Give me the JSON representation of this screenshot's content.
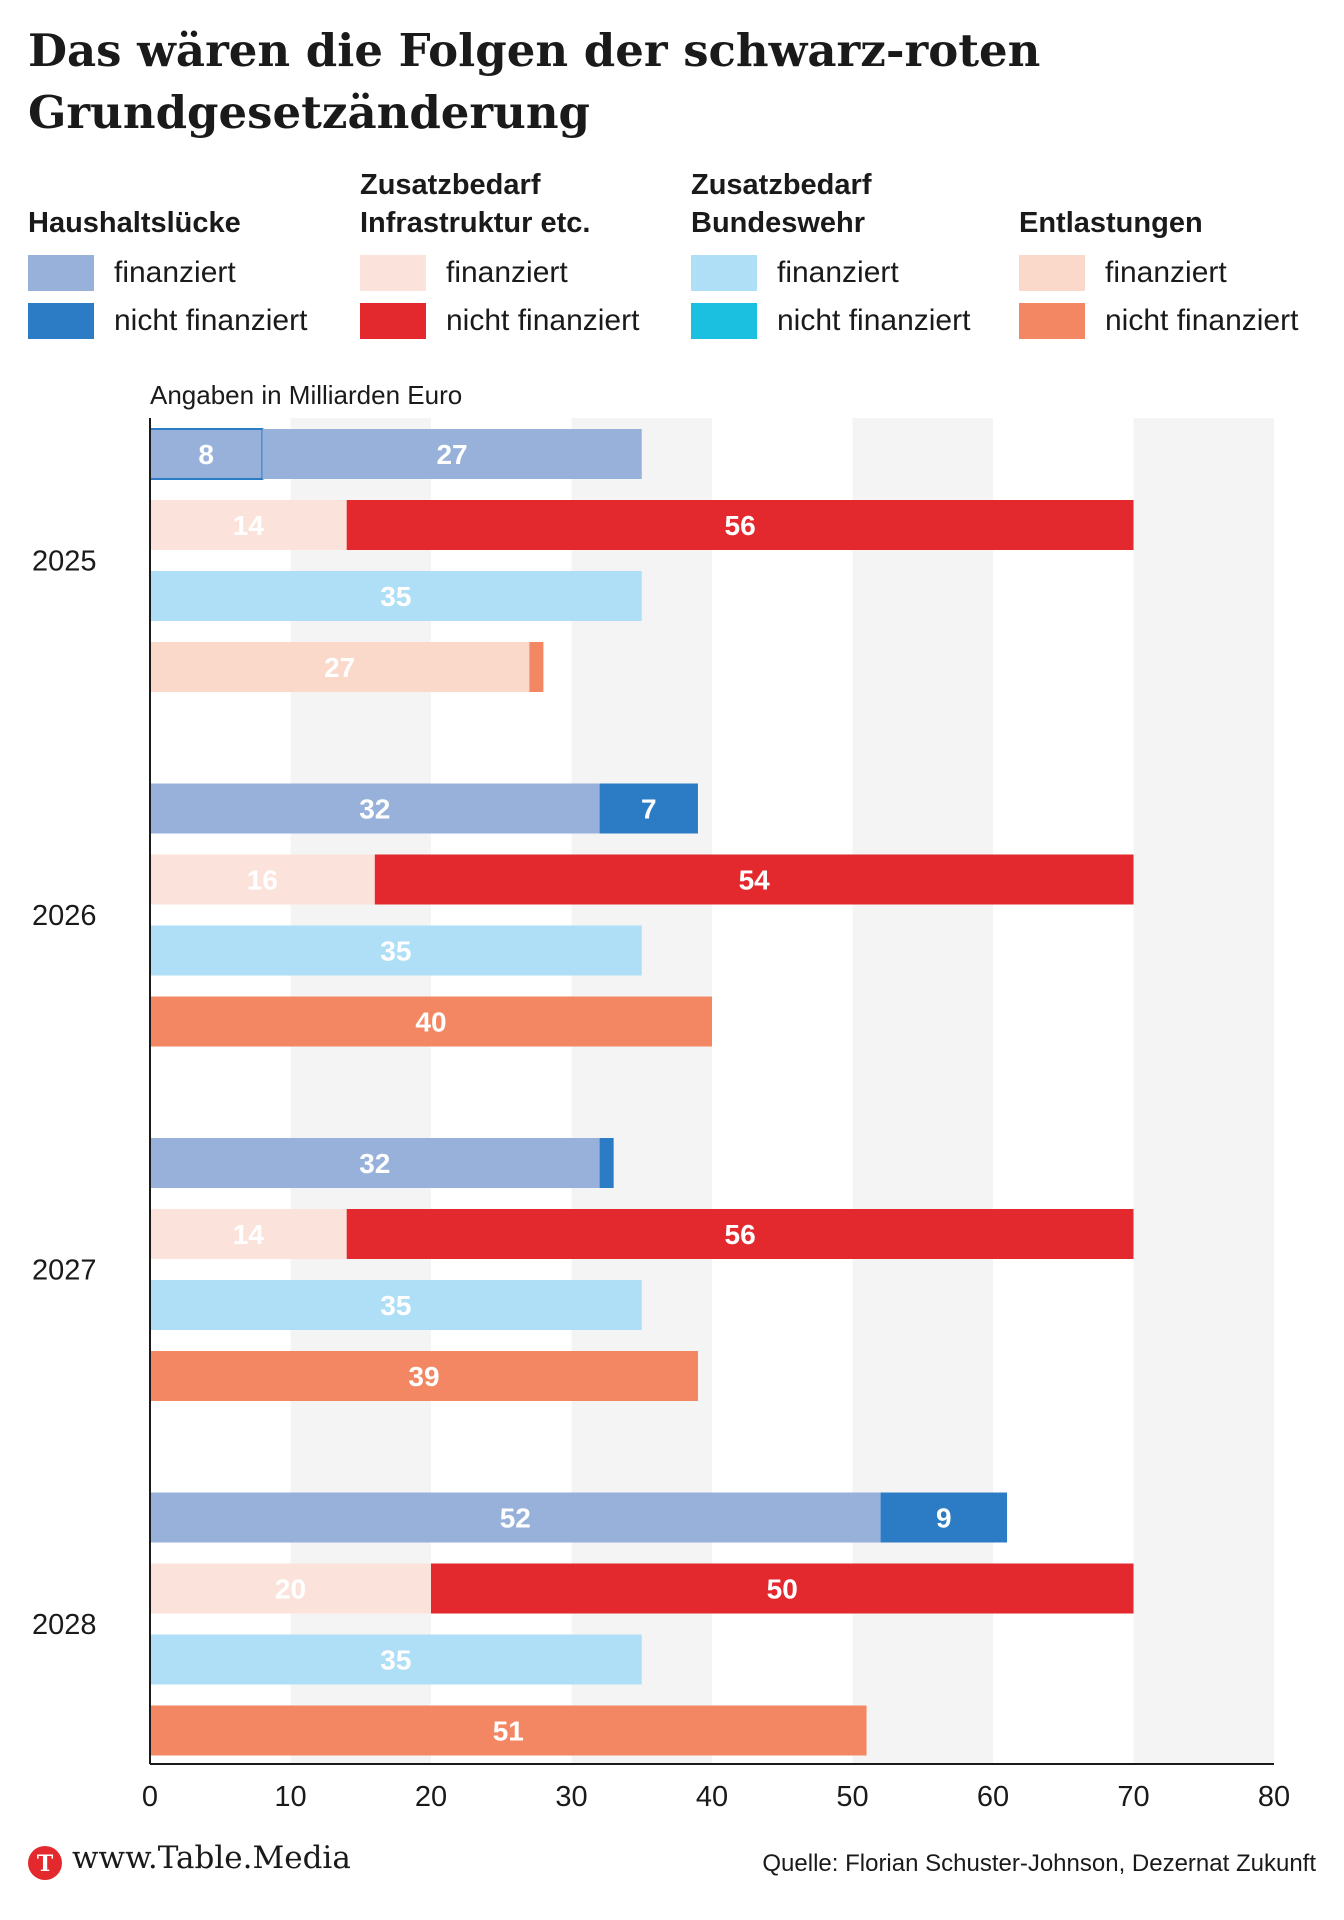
{
  "title": "Das wären die Folgen der schwarz-roten Grundgesetzänderung",
  "legend": [
    {
      "heading": "Haushaltslücke",
      "items": [
        {
          "label": "finanziert",
          "color": "#98b1db"
        },
        {
          "label": "nicht finanziert",
          "color": "#2b7cc4"
        }
      ]
    },
    {
      "heading": "Zusatzbedarf Infrastruktur etc.",
      "items": [
        {
          "label": "finanziert",
          "color": "#fbe3dc"
        },
        {
          "label": "nicht finanziert",
          "color": "#e3292d"
        }
      ]
    },
    {
      "heading": "Zusatzbedarf Bundeswehr",
      "items": [
        {
          "label": "finanziert",
          "color": "#aedff7"
        },
        {
          "label": "nicht finanziert",
          "color": "#1bbfe0"
        }
      ]
    },
    {
      "heading": "Entlastungen",
      "items": [
        {
          "label": "finanziert",
          "color": "#fad9cb"
        },
        {
          "label": "nicht finanziert",
          "color": "#f38763"
        }
      ]
    }
  ],
  "unit_note": "Angaben in Milliarden Euro",
  "chart_data": {
    "type": "bar",
    "orientation": "horizontal",
    "stacked": true,
    "categories": [
      "2025",
      "2026",
      "2027",
      "2028"
    ],
    "groups": [
      {
        "name": "Haushaltslücke",
        "finanziert": [
          27,
          32,
          32,
          52
        ],
        "nicht_finanziert": [
          8,
          7,
          1,
          9
        ],
        "first_segment": [
          "nicht_finanziert",
          "finanziert",
          "finanziert",
          "finanziert"
        ],
        "show_labels": {
          "finanziert": [
            true,
            true,
            true,
            true
          ],
          "nicht_finanziert": [
            true,
            true,
            false,
            true
          ]
        }
      },
      {
        "name": "Zusatzbedarf Infrastruktur etc.",
        "finanziert": [
          14,
          16,
          14,
          20
        ],
        "nicht_finanziert": [
          56,
          54,
          56,
          50
        ],
        "first_segment": [
          "finanziert",
          "finanziert",
          "finanziert",
          "finanziert"
        ],
        "show_labels": {
          "finanziert": [
            true,
            true,
            true,
            true
          ],
          "nicht_finanziert": [
            true,
            true,
            true,
            true
          ]
        }
      },
      {
        "name": "Zusatzbedarf Bundeswehr",
        "finanziert": [
          35,
          35,
          35,
          35
        ],
        "nicht_finanziert": [
          0,
          0,
          0,
          0
        ],
        "first_segment": [
          "finanziert",
          "finanziert",
          "finanziert",
          "finanziert"
        ],
        "show_labels": {
          "finanziert": [
            true,
            true,
            true,
            true
          ],
          "nicht_finanziert": [
            false,
            false,
            false,
            false
          ]
        }
      },
      {
        "name": "Entlastungen",
        "finanziert": [
          27,
          0,
          0,
          0
        ],
        "nicht_finanziert": [
          1,
          40,
          39,
          51
        ],
        "first_segment": [
          "finanziert",
          "finanziert",
          "finanziert",
          "finanziert"
        ],
        "show_labels": {
          "finanziert": [
            true,
            false,
            false,
            false
          ],
          "nicht_finanziert": [
            false,
            true,
            true,
            true
          ]
        }
      }
    ],
    "xlim": [
      0,
      80
    ],
    "xticks": [
      0,
      10,
      20,
      30,
      40,
      50,
      60,
      70,
      80
    ],
    "grid": "alternating bands",
    "legend_position": "top"
  },
  "footer": {
    "site": "www.Table.Media",
    "logo_letter": "T",
    "source": "Quelle: Florian Schuster-Johnson, Dezernat Zukunft"
  }
}
